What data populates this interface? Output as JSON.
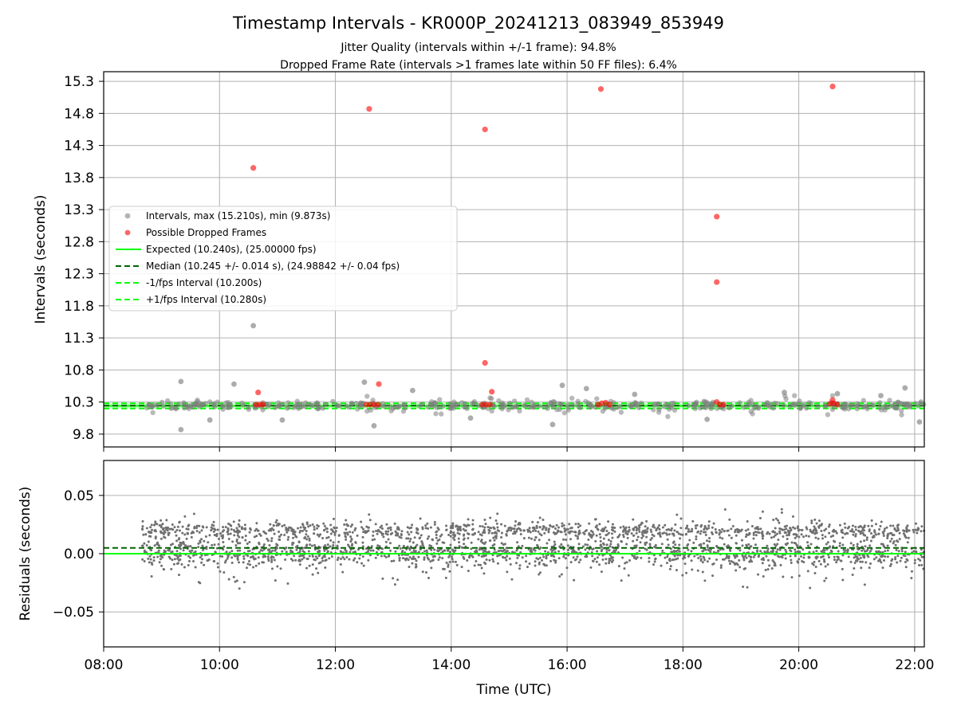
{
  "title": "Timestamp Intervals - KR000P_20241213_083949_853949",
  "subtitle_lines": [
    "Jitter Quality (intervals within +/-1 frame): 94.8%",
    "Dropped Frame Rate (intervals >1 frames late within 50 FF files): 6.4%"
  ],
  "colors": {
    "intervals": "#808080",
    "dropped": "#ff0000",
    "expected": "#00ff00",
    "median": "#006400",
    "band": "#00ff00",
    "grid": "#b0b0b0"
  },
  "chart_data": [
    {
      "type": "scatter",
      "ylabel": "Intervals (seconds)",
      "xlabel": "",
      "xlim": [
        "08:00",
        "22:10"
      ],
      "ylim": [
        9.6,
        15.45
      ],
      "grid": true,
      "legend_position": "center-left",
      "yticks": [
        "9.8",
        "10.3",
        "10.8",
        "11.3",
        "11.8",
        "12.3",
        "12.8",
        "13.3",
        "13.8",
        "14.3",
        "14.8",
        "15.3"
      ],
      "ytick_values": [
        9.8,
        10.3,
        10.8,
        11.3,
        11.8,
        12.3,
        12.8,
        13.3,
        13.8,
        14.3,
        14.8,
        15.3
      ],
      "xtick_hours": [
        8,
        10,
        12,
        14,
        16,
        18,
        20,
        22
      ],
      "legend": [
        {
          "label": "Intervals, max (15.210s), min (9.873s)",
          "kind": "dot",
          "color": "#808080"
        },
        {
          "label": "Possible Dropped Frames",
          "kind": "dot",
          "color": "#ff0000"
        },
        {
          "label": "Expected (10.240s), (25.00000 fps)",
          "kind": "solid",
          "color": "#00ff00"
        },
        {
          "label": "Median (10.245 +/- 0.014 s), (24.98842 +/- 0.04 fps)",
          "kind": "dashed",
          "color": "#006400"
        },
        {
          "label": "-1/fps Interval (10.200s)",
          "kind": "dashed",
          "color": "#00ff00"
        },
        {
          "label": "+1/fps Interval (10.280s)",
          "kind": "dashed",
          "color": "#00ff00"
        }
      ],
      "reference_lines": {
        "expected": 10.24,
        "median": 10.245,
        "minus_one": 10.2,
        "plus_one": 10.28
      },
      "series": [
        {
          "name": "Possible Dropped Frames",
          "points": [
            [
              "10:35",
              13.95
            ],
            [
              "12:35",
              14.87
            ],
            [
              "14:35",
              14.55
            ],
            [
              "16:35",
              15.18
            ],
            [
              "18:35",
              13.19
            ],
            [
              "18:35",
              12.17
            ],
            [
              "20:35",
              15.22
            ],
            [
              "14:35",
              10.91
            ],
            [
              "10:40",
              10.45
            ],
            [
              "12:45",
              10.58
            ],
            [
              "14:42",
              10.46
            ],
            [
              "18:35",
              10.3
            ],
            [
              "20:35",
              10.33
            ],
            [
              "10:38",
              10.26
            ],
            [
              "10:42",
              10.26
            ],
            [
              "10:45",
              10.26
            ],
            [
              "12:32",
              10.26
            ],
            [
              "12:36",
              10.26
            ],
            [
              "12:40",
              10.26
            ],
            [
              "12:44",
              10.26
            ],
            [
              "14:32",
              10.26
            ],
            [
              "14:36",
              10.26
            ],
            [
              "14:40",
              10.26
            ],
            [
              "16:32",
              10.26
            ],
            [
              "16:36",
              10.28
            ],
            [
              "16:40",
              10.29
            ],
            [
              "16:44",
              10.26
            ],
            [
              "18:38",
              10.26
            ],
            [
              "18:42",
              10.26
            ],
            [
              "20:32",
              10.27
            ],
            [
              "20:36",
              10.28
            ],
            [
              "20:40",
              10.26
            ]
          ]
        },
        {
          "name": "Intervals",
          "points": [
            [
              "10:35",
              11.49
            ],
            [
              "09:20",
              9.87
            ],
            [
              "09:20",
              10.62
            ],
            [
              "10:15",
              10.58
            ],
            [
              "12:30",
              10.61
            ],
            [
              "16:20",
              10.51
            ],
            [
              "15:55",
              10.56
            ],
            [
              "21:50",
              10.52
            ],
            [
              "22:05",
              9.99
            ],
            [
              "12:40",
              9.93
            ],
            [
              "15:45",
              9.95
            ],
            [
              "18:25",
              10.03
            ],
            [
              "11:05",
              10.02
            ],
            [
              "19:45",
              10.45
            ],
            [
              "13:20",
              10.48
            ],
            [
              "17:10",
              10.42
            ],
            [
              "20:40",
              10.43
            ],
            [
              "09:50",
              10.02
            ],
            [
              "14:20",
              10.05
            ],
            [
              "21:25",
              10.4
            ]
          ],
          "scatter_band": {
            "center": 10.245,
            "spread": 0.14
          }
        }
      ]
    },
    {
      "type": "scatter",
      "xlabel": "Time (UTC)",
      "ylabel": "Residuals (seconds)",
      "xlim": [
        "08:00",
        "22:10"
      ],
      "ylim": [
        -0.08,
        0.08
      ],
      "grid": true,
      "xticks": [
        "08:00",
        "10:00",
        "12:00",
        "14:00",
        "16:00",
        "18:00",
        "20:00",
        "22:00"
      ],
      "xtick_hours": [
        8,
        10,
        12,
        14,
        16,
        18,
        20,
        22
      ],
      "yticks": [
        "−0.05",
        "0.00",
        "0.05"
      ],
      "ytick_values": [
        -0.05,
        0.0,
        0.05
      ],
      "reference_lines": {
        "expected": 0.0,
        "median": 0.005
      },
      "residuals": {
        "time_range": [
          "08:40",
          "22:10"
        ],
        "clusters": [
          {
            "center": 0.02,
            "spread": 0.006,
            "share": 0.3
          },
          {
            "center": 0.0,
            "spread": 0.007,
            "share": 0.3
          },
          {
            "center": 0.005,
            "spread": 0.022,
            "share": 0.4
          }
        ]
      }
    }
  ]
}
